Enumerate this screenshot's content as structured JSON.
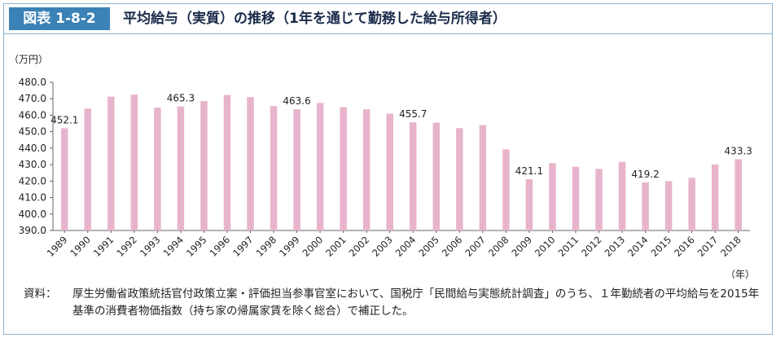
{
  "figure": {
    "number": "図表 1-8-2",
    "title": "平均給与（実質）の推移（1年を通じて勤務した給与所得者）"
  },
  "note": {
    "label": "資料：",
    "text": "厚生労働省政策統括官付政策立案・評価担当参事官室において、国税庁「民間給与実態統計調査」のうち、１年勤続者の平均給与を2015年基準の消費者物価指数（持ち家の帰属家賃を除く総合）で補正した。"
  },
  "colors": {
    "bar": "#e8b4cc",
    "accent": "#3b82b6"
  },
  "chart_data": {
    "type": "bar",
    "ylabel": "（万円）",
    "xlabel": "（年）",
    "ylim": [
      390.0,
      480.0
    ],
    "yticks": [
      "390.0",
      "400.0",
      "410.0",
      "420.0",
      "430.0",
      "440.0",
      "450.0",
      "460.0",
      "470.0",
      "480.0"
    ],
    "grid": false,
    "categories": [
      "1989",
      "1990",
      "1991",
      "1992",
      "1993",
      "1994",
      "1995",
      "1996",
      "1997",
      "1998",
      "1999",
      "2000",
      "2001",
      "2002",
      "2003",
      "2004",
      "2005",
      "2006",
      "2007",
      "2008",
      "2009",
      "2010",
      "2011",
      "2012",
      "2013",
      "2014",
      "2015",
      "2016",
      "2017",
      "2018"
    ],
    "values": [
      452.1,
      464.0,
      471.3,
      472.5,
      464.6,
      465.3,
      468.6,
      472.3,
      471.0,
      465.5,
      463.6,
      467.4,
      464.9,
      463.6,
      460.9,
      455.7,
      455.5,
      452.2,
      454.0,
      439.3,
      421.1,
      430.9,
      428.7,
      427.4,
      431.7,
      419.2,
      420.0,
      422.0,
      430.0,
      433.3
    ],
    "data_labels": [
      {
        "category": "1989",
        "text": "452.1"
      },
      {
        "category": "1994",
        "text": "465.3"
      },
      {
        "category": "1999",
        "text": "463.6"
      },
      {
        "category": "2004",
        "text": "455.7"
      },
      {
        "category": "2009",
        "text": "421.1"
      },
      {
        "category": "2014",
        "text": "419.2"
      },
      {
        "category": "2018",
        "text": "433.3"
      }
    ]
  }
}
